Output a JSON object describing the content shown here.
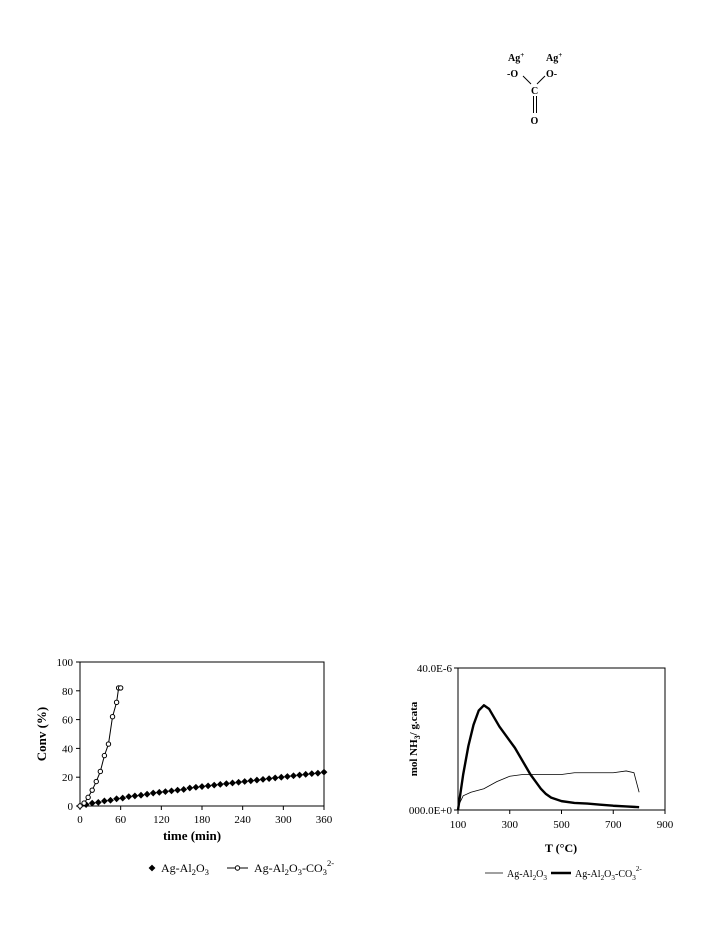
{
  "structure": {
    "ag_left": "Ag",
    "ag_right": "Ag",
    "plus": "+",
    "o_left": "-O",
    "o_right": "O-",
    "carbon": "C",
    "o_bottom": "O"
  },
  "chart_data": [
    {
      "type": "scatter",
      "xlabel": "time (min)",
      "ylabel": "Conv (%)",
      "xlim": [
        0,
        360
      ],
      "ylim": [
        0,
        100
      ],
      "xticks": [
        "0",
        "60",
        "120",
        "180",
        "240",
        "300",
        "360"
      ],
      "yticks": [
        "0",
        "20",
        "40",
        "60",
        "80",
        "100"
      ],
      "legend_position": "bottom",
      "series": [
        {
          "name": "Ag-Al2O3",
          "label_parts": [
            "Ag-Al",
            "2",
            "O",
            "3"
          ],
          "marker": "diamond",
          "color": "#000000",
          "x": [
            0,
            9,
            18,
            27,
            36,
            45,
            54,
            63,
            72,
            81,
            90,
            99,
            108,
            117,
            126,
            135,
            144,
            153,
            162,
            171,
            180,
            189,
            198,
            207,
            216,
            225,
            234,
            243,
            252,
            261,
            270,
            279,
            288,
            297,
            306,
            315,
            324,
            333,
            342,
            351,
            360
          ],
          "y": [
            0,
            1,
            2,
            2.5,
            3.5,
            4,
            5,
            5.5,
            6.5,
            7,
            7.5,
            8.2,
            9,
            9.5,
            10,
            10.5,
            11,
            11.5,
            12.5,
            13,
            13.5,
            14,
            14.5,
            15,
            15.5,
            16,
            16.5,
            17,
            17.5,
            18,
            18.5,
            19,
            19.5,
            20,
            20.5,
            21,
            21.5,
            22,
            22.5,
            22.8,
            23.5
          ]
        },
        {
          "name": "Ag-Al2O3-CO3 2-",
          "label_parts": [
            "Ag-Al",
            "2",
            "O",
            "3",
            "-CO",
            "3",
            "2-"
          ],
          "marker": "circle-line",
          "color": "#000000",
          "x": [
            0,
            6,
            12,
            18,
            24,
            30,
            36,
            42,
            48,
            54,
            57,
            60
          ],
          "y": [
            0,
            2,
            6,
            11,
            17,
            24,
            35,
            43,
            62,
            72,
            82,
            82
          ]
        }
      ]
    },
    {
      "type": "line",
      "xlabel": "T (°C)",
      "ylabel": "mol NH3/ g.cata",
      "ylabel_parts": [
        "mol NH",
        "3",
        "/ g.cata"
      ],
      "xlim": [
        100,
        900
      ],
      "ylim": [
        0,
        40
      ],
      "xticks": [
        "100",
        "300",
        "500",
        "700",
        "900"
      ],
      "yticks": [
        "000.0E+0",
        "40.0E-6"
      ],
      "legend_position": "bottom",
      "series": [
        {
          "name": "Ag-Al2O3",
          "label_parts": [
            "Ag-Al",
            "2",
            "O",
            "3"
          ],
          "color": "#000000",
          "x": [
            100,
            120,
            150,
            200,
            250,
            300,
            350,
            400,
            450,
            500,
            550,
            600,
            650,
            700,
            750,
            780,
            800
          ],
          "y": [
            1,
            4,
            5,
            6,
            8,
            9.5,
            10,
            10,
            10,
            10,
            10.5,
            10.5,
            10.5,
            10.5,
            11,
            10.5,
            5
          ]
        },
        {
          "name": "Ag-Al2O3-CO3 2-",
          "label_parts": [
            "Ag-Al",
            "2",
            "O",
            "3",
            "-CO",
            "3",
            "2-"
          ],
          "color": "#000000",
          "x": [
            100,
            120,
            140,
            160,
            180,
            200,
            220,
            240,
            260,
            280,
            300,
            320,
            340,
            360,
            380,
            400,
            420,
            440,
            460,
            480,
            500,
            550,
            600,
            650,
            700,
            750,
            800
          ],
          "y": [
            0,
            10,
            18,
            24,
            28,
            29.5,
            28.5,
            26,
            23.5,
            21.5,
            19.5,
            17.5,
            15,
            12.5,
            10,
            8,
            6,
            4.5,
            3.5,
            3,
            2.5,
            2,
            1.8,
            1.5,
            1.2,
            1,
            0.8
          ]
        }
      ]
    }
  ]
}
